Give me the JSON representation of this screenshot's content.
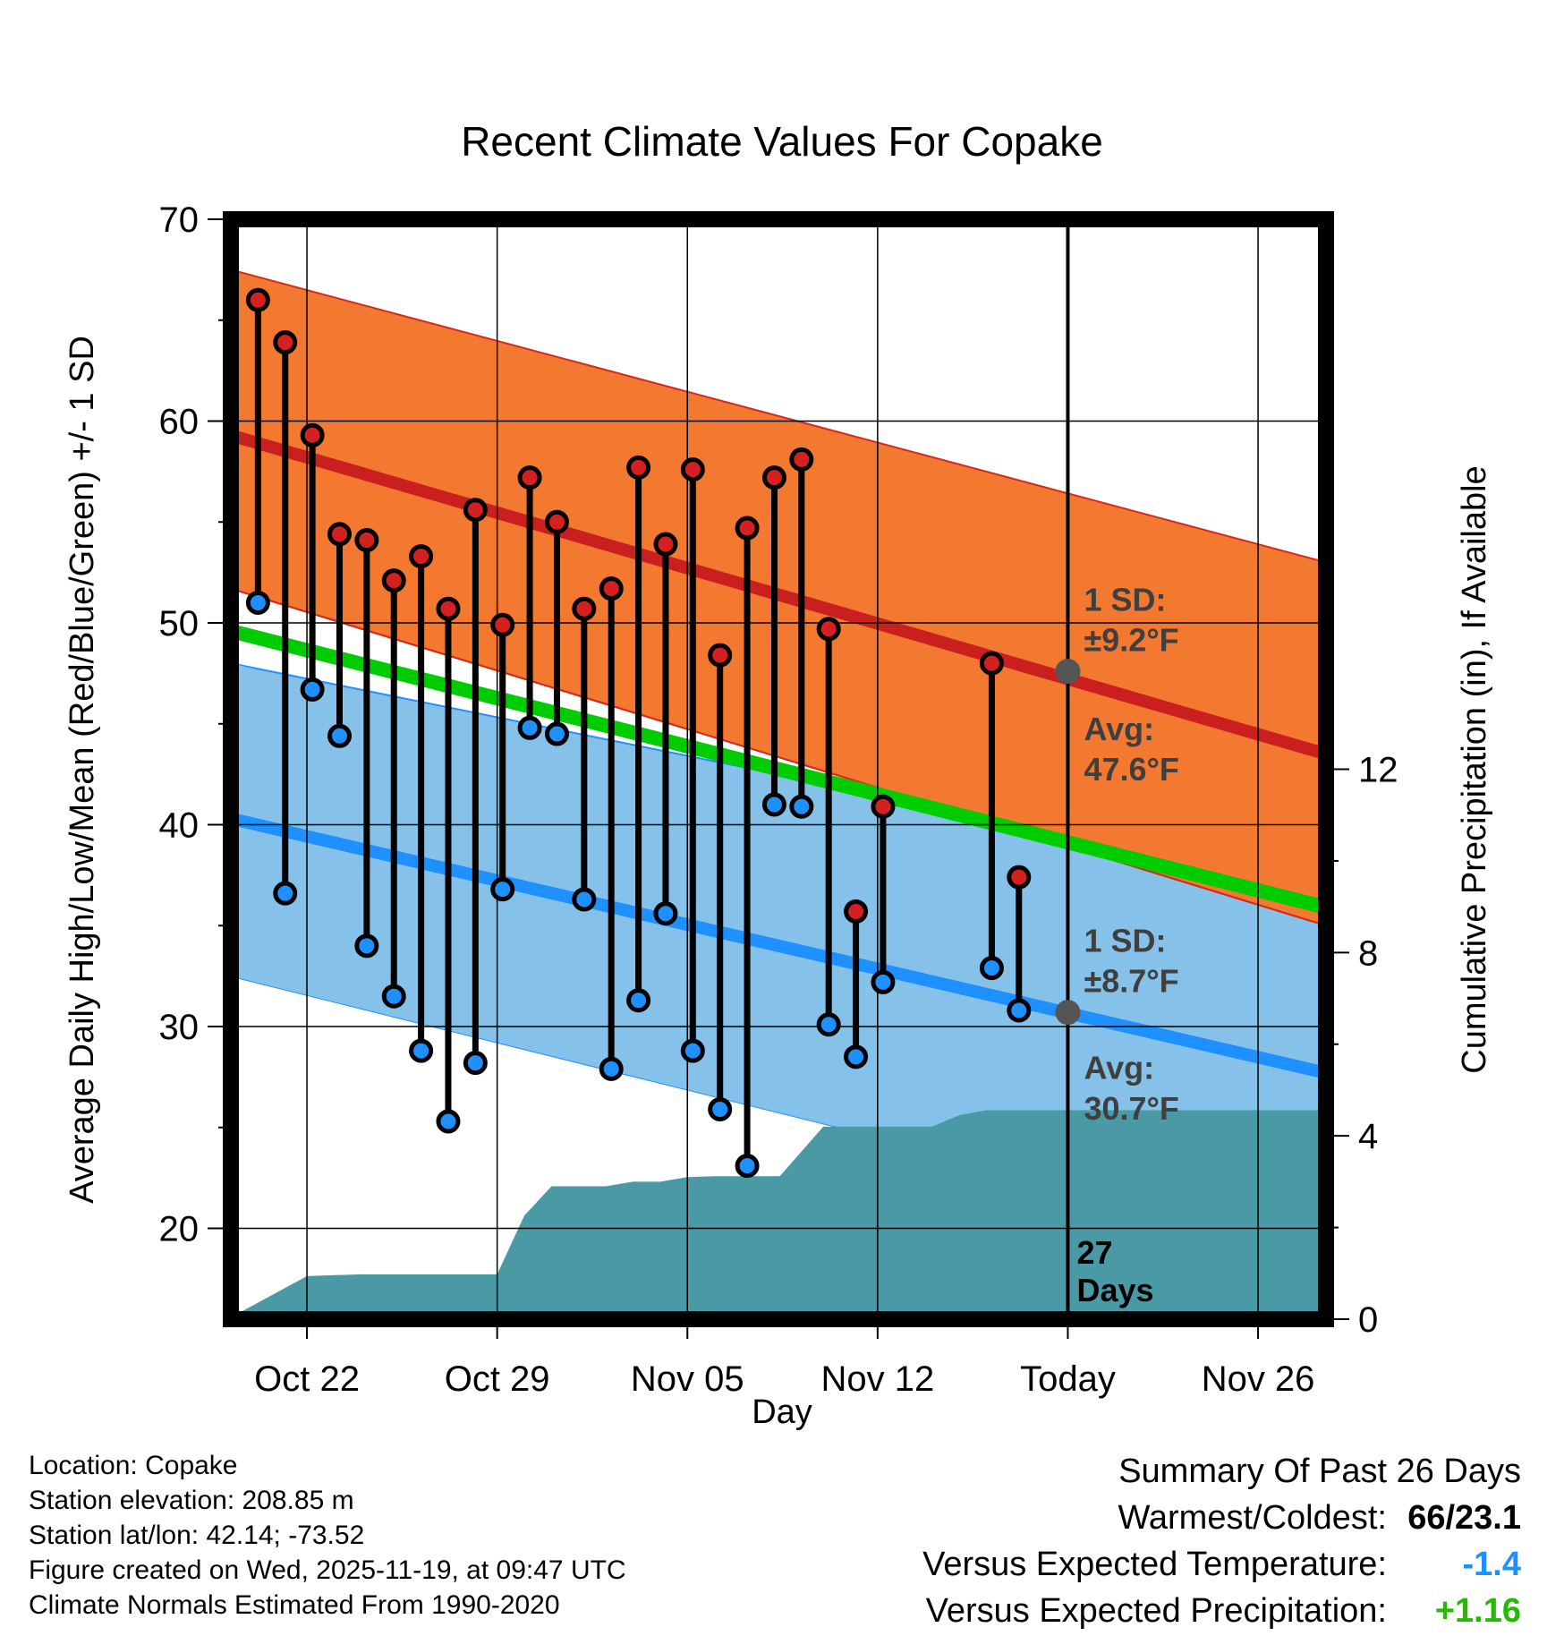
{
  "chart_data": {
    "type": "line",
    "title": "Recent Climate Values For Copake",
    "xlabel": "Day",
    "ylabel": "Average Daily High/Low/Mean (Red/Blue/Green) +/- 1 SD",
    "y2label": "Cumulative Precipitation (in), If Available",
    "ylim": [
      15.5,
      70
    ],
    "y2lim": [
      0,
      24
    ],
    "yticks": [
      20,
      30,
      40,
      50,
      60,
      70
    ],
    "y2ticks": [
      0,
      4,
      8,
      12
    ],
    "xlim": [
      0,
      40.3
    ],
    "xticks": [
      {
        "day": 2.8,
        "label": "Oct 22"
      },
      {
        "day": 9.8,
        "label": "Oct 29"
      },
      {
        "day": 16.8,
        "label": "Nov 05"
      },
      {
        "day": 23.8,
        "label": "Nov 12"
      },
      {
        "day": 30.8,
        "label": "Today"
      },
      {
        "day": 37.8,
        "label": "Nov 26"
      }
    ],
    "today_day": 30.8,
    "normals": {
      "high_avg": [
        59.3,
        43.5
      ],
      "high_upper": [
        67.5,
        53.0
      ],
      "high_lower": [
        51.7,
        35.0
      ],
      "low_avg": [
        40.3,
        27.7
      ],
      "low_upper": [
        48.0,
        37.0
      ],
      "low_lower": [
        32.5,
        19.0
      ],
      "mean_avg": [
        49.6,
        35.9
      ]
    },
    "series": [
      {
        "name": "High",
        "color": "#d42020",
        "values": [
          66.0,
          63.9,
          59.3,
          54.4,
          54.1,
          52.1,
          53.3,
          50.7,
          55.6,
          49.9,
          57.2,
          55.0,
          50.7,
          51.7,
          57.7,
          53.9,
          57.6,
          48.4,
          54.7,
          57.2,
          58.1,
          49.7,
          35.7,
          40.9,
          null,
          null,
          null,
          48.0,
          37.4
        ]
      },
      {
        "name": "Low",
        "color": "#1e90ff",
        "values": [
          51.0,
          36.6,
          46.7,
          44.4,
          34.0,
          31.5,
          28.8,
          25.3,
          28.2,
          36.8,
          44.8,
          44.5,
          36.3,
          27.9,
          31.3,
          35.6,
          28.8,
          25.9,
          23.1,
          41.0,
          40.9,
          30.1,
          28.5,
          32.2,
          null,
          null,
          null,
          32.9,
          30.8
        ]
      },
      {
        "name": "Cumulative Precipitation",
        "color": "#4a9aa5",
        "x": [
          0,
          0.5,
          2.8,
          4.8,
          9.8,
          10.8,
          11.8,
          13.8,
          14.8,
          15.8,
          16.8,
          17.8,
          18.8,
          20.2,
          21.8,
          22.8,
          23.8,
          25.8,
          26.8,
          27.8,
          40.3
        ],
        "values": [
          0,
          0.2,
          0.94,
          0.98,
          0.98,
          2.26,
          2.9,
          2.9,
          3.0,
          3.0,
          3.1,
          3.12,
          3.12,
          3.12,
          4.2,
          4.2,
          4.2,
          4.2,
          4.45,
          4.56,
          4.56
        ]
      }
    ],
    "annotations": {
      "high_sd": [
        "1 SD:",
        "±9.2°F"
      ],
      "high_avg": [
        "Avg:",
        "47.6°F"
      ],
      "low_sd": [
        "1 SD:",
        "±8.7°F"
      ],
      "low_avg": [
        "Avg:",
        "30.7°F"
      ],
      "days": [
        "27",
        "Days"
      ]
    },
    "colors": {
      "high_band": "#f47930",
      "high_line": "#c9201f",
      "low_band": "#85c1e9",
      "low_line": "#1e90ff",
      "mean_line": "#00cc00",
      "overlap": "#8b1a10",
      "precip": "#4a9aa5",
      "today_marker": "#555555"
    }
  },
  "info": {
    "location": "Location: Copake",
    "elevation": "Station elevation: 208.85 m",
    "latlon": "Station lat/lon: 42.14; -73.52",
    "created": "Figure created on Wed, 2025-11-19, at 09:47 UTC",
    "normals": "Climate Normals Estimated From 1990-2020"
  },
  "summary": {
    "heading": "Summary Of Past 26 Days",
    "warmest_label": "Warmest/Coldest:",
    "warmest_value": "66/23.1",
    "temp_label": "Versus Expected Temperature:",
    "temp_value": "-1.4",
    "temp_color": "#1e90ff",
    "precip_label": "Versus Expected Precipitation:",
    "precip_value": "+1.16",
    "precip_color": "#22bb00"
  }
}
